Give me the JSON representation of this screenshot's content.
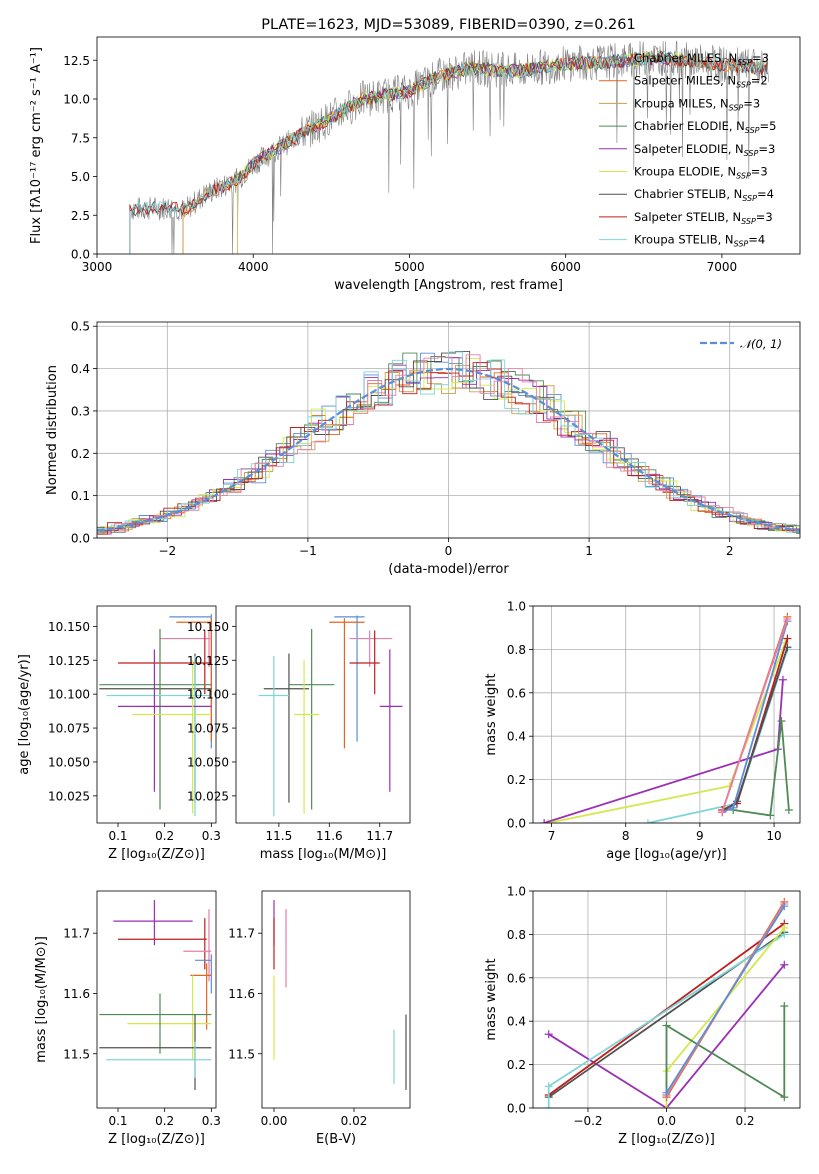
{
  "colors": {
    "Chabrier MILES": "#5b8ed6",
    "Salpeter MILES": "#e2651f",
    "Kroupa MILES": "#c9a04a",
    "Chabrier ELODIE": "#4f8a55",
    "Salpeter ELODIE": "#9b2fb5",
    "Kroupa ELODIE": "#d4e84d",
    "Chabrier STELIB": "#505050",
    "Salpeter STELIB": "#c01d1d",
    "Kroupa STELIB": "#7fd4d6",
    "extra_pink": "#e77fa8",
    "spectrum_data": "#808080"
  },
  "chart_data": [
    {
      "id": "spectrum",
      "type": "line",
      "title": "PLATE=1623, MJD=53089, FIBERID=0390, z=0.261",
      "xlabel": "wavelength [Angstrom, rest frame]",
      "ylabel": "Flux [fλ10⁻¹⁷ erg cm⁻² s⁻¹ A⁻¹]",
      "xlim": [
        3000,
        7500
      ],
      "ylim": [
        0,
        14
      ],
      "xticks": [
        "3000",
        "4000",
        "5000",
        "6000",
        "7000"
      ],
      "yticks": [
        "0.0",
        "2.5",
        "5.0",
        "7.5",
        "10.0",
        "12.5"
      ],
      "legend_position": "right",
      "legend": [
        {
          "label": "Chabrier MILES, N",
          "sub": "SSP",
          "suffix": "=3"
        },
        {
          "label": "Salpeter MILES, N",
          "sub": "SSP",
          "suffix": "=2"
        },
        {
          "label": "Kroupa MILES, N",
          "sub": "SSP",
          "suffix": "=3"
        },
        {
          "label": "Chabrier ELODIE, N",
          "sub": "SSP",
          "suffix": "=5"
        },
        {
          "label": "Salpeter ELODIE, N",
          "sub": "SSP",
          "suffix": "=3"
        },
        {
          "label": "Kroupa ELODIE, N",
          "sub": "SSP",
          "suffix": "=3"
        },
        {
          "label": "Chabrier STELIB, N",
          "sub": "SSP",
          "suffix": "=4"
        },
        {
          "label": "Salpeter STELIB, N",
          "sub": "SSP",
          "suffix": "=3"
        },
        {
          "label": "Kroupa STELIB, N",
          "sub": "SSP",
          "suffix": "=4"
        }
      ],
      "continuum": {
        "x": [
          3220,
          3500,
          3560,
          3700,
          3900,
          4000,
          4300,
          4500,
          4700,
          5000,
          5200,
          5400,
          5700,
          6000,
          6300,
          6600,
          7000,
          7300,
          7500
        ],
        "y": [
          2.9,
          3.0,
          2.8,
          3.9,
          4.8,
          5.8,
          7.7,
          8.8,
          10.0,
          10.5,
          11.5,
          12.0,
          11.8,
          12.3,
          12.4,
          12.7,
          12.2,
          12.0,
          12.0
        ]
      }
    },
    {
      "id": "residuals",
      "type": "histogram",
      "xlabel": "(data-model)/error",
      "ylabel": "Normed distribution",
      "xlim": [
        -2.5,
        2.5
      ],
      "ylim": [
        0,
        0.51
      ],
      "xticks": [
        "−2",
        "−1",
        "0",
        "1",
        "2"
      ],
      "yticks": [
        "0.0",
        "0.1",
        "0.2",
        "0.3",
        "0.4",
        "0.5"
      ],
      "legend": [
        "𝒩(0, 1)"
      ],
      "legend_position": "top-right",
      "normal_curve": {
        "mean": 0,
        "sigma": 1
      }
    },
    {
      "id": "age_vs_Z",
      "type": "scatter",
      "xlabel": "Z [log₁₀(Z/Z⊙)]",
      "ylabel": "age  [log₁₀(age/yr)]",
      "xlim": [
        0.055,
        0.31
      ],
      "ylim": [
        10.005,
        10.165
      ],
      "xticks": [
        "0.1",
        "0.2",
        "0.3"
      ],
      "yticks": [
        "10.025",
        "10.050",
        "10.075",
        "10.100",
        "10.125",
        "10.150"
      ],
      "points": [
        {
          "model": "Chabrier MILES",
          "x": 0.3,
          "xerr": [
            0.21,
            0.3
          ],
          "y": 10.157,
          "yerr": [
            10.06,
            10.159
          ]
        },
        {
          "model": "Salpeter MILES",
          "x": 0.3,
          "xerr": [
            0.225,
            0.3
          ],
          "y": 10.153,
          "yerr": [
            10.065,
            10.156
          ]
        },
        {
          "model": "extra_pink",
          "x": 0.295,
          "xerr": [
            0.19,
            0.3
          ],
          "y": 10.141,
          "yerr": [
            10.12,
            10.147
          ]
        },
        {
          "model": "Salpeter STELIB",
          "x": 0.286,
          "xerr": [
            0.1,
            0.3
          ],
          "y": 10.123,
          "yerr": [
            10.1,
            10.147
          ]
        },
        {
          "model": "Chabrier STELIB",
          "x": 0.265,
          "xerr": [
            0.06,
            0.3
          ],
          "y": 10.104,
          "yerr": [
            10.02,
            10.13
          ]
        },
        {
          "model": "Chabrier ELODIE",
          "x": 0.19,
          "xerr": [
            0.06,
            0.3
          ],
          "y": 10.107,
          "yerr": [
            10.015,
            10.148
          ]
        },
        {
          "model": "Kroupa STELIB",
          "x": 0.265,
          "xerr": [
            0.075,
            0.3
          ],
          "y": 10.099,
          "yerr": [
            10.01,
            10.128
          ]
        },
        {
          "model": "Salpeter ELODIE",
          "x": 0.178,
          "xerr": [
            0.1,
            0.3
          ],
          "y": 10.091,
          "yerr": [
            10.028,
            10.133
          ]
        },
        {
          "model": "Kroupa ELODIE",
          "x": 0.26,
          "xerr": [
            0.13,
            0.3
          ],
          "y": 10.085,
          "yerr": [
            10.012,
            10.125
          ]
        }
      ]
    },
    {
      "id": "age_vs_mass",
      "type": "scatter",
      "xlabel": "mass [log₁₀(M/M⊙)]",
      "xlim": [
        11.415,
        11.76
      ],
      "ylim": [
        10.005,
        10.165
      ],
      "xticks": [
        "11.5",
        "11.6",
        "11.7"
      ],
      "yticks": [
        "10.025",
        "10.050",
        "10.075",
        "10.100",
        "10.125",
        "10.150"
      ],
      "points": [
        {
          "model": "Chabrier MILES",
          "x": 11.655,
          "xerr": [
            11.61,
            11.67
          ],
          "y": 10.157,
          "yerr": [
            10.065,
            10.158
          ]
        },
        {
          "model": "Salpeter MILES",
          "x": 11.63,
          "xerr": [
            11.6,
            11.67
          ],
          "y": 10.153,
          "yerr": [
            10.06,
            10.156
          ]
        },
        {
          "model": "extra_pink",
          "x": 11.68,
          "xerr": [
            11.64,
            11.725
          ],
          "y": 10.141,
          "yerr": [
            10.12,
            10.147
          ]
        },
        {
          "model": "Salpeter STELIB",
          "x": 11.69,
          "xerr": [
            11.64,
            11.7
          ],
          "y": 10.123,
          "yerr": [
            10.1,
            10.147
          ]
        },
        {
          "model": "Chabrier STELIB",
          "x": 11.52,
          "xerr": [
            11.47,
            11.56
          ],
          "y": 10.104,
          "yerr": [
            10.02,
            10.13
          ]
        },
        {
          "model": "Chabrier ELODIE",
          "x": 11.565,
          "xerr": [
            11.52,
            11.61
          ],
          "y": 10.107,
          "yerr": [
            10.015,
            10.148
          ]
        },
        {
          "model": "Kroupa STELIB",
          "x": 11.49,
          "xerr": [
            11.46,
            11.52
          ],
          "y": 10.099,
          "yerr": [
            10.01,
            10.128
          ]
        },
        {
          "model": "Salpeter ELODIE",
          "x": 11.72,
          "xerr": [
            11.7,
            11.745
          ],
          "y": 10.091,
          "yerr": [
            10.028,
            10.133
          ]
        },
        {
          "model": "Kroupa ELODIE",
          "x": 11.55,
          "xerr": [
            11.53,
            11.58
          ],
          "y": 10.085,
          "yerr": [
            10.012,
            10.125
          ]
        }
      ]
    },
    {
      "id": "weight_vs_age",
      "type": "line",
      "xlabel": "age  [log₁₀(age/yr)]",
      "ylabel": "mass weight",
      "xlim": [
        6.75,
        10.35
      ],
      "ylim": [
        0,
        1.0
      ],
      "xticks": [
        "7",
        "8",
        "9",
        "10"
      ],
      "yticks": [
        "0.0",
        "0.2",
        "0.4",
        "0.6",
        "0.8",
        "1.0"
      ],
      "series": [
        {
          "model": "Kroupa ELODIE",
          "x": [
            6.95,
            9.4,
            10.15
          ],
          "y": [
            0.0,
            0.17,
            0.83
          ]
        },
        {
          "model": "Salpeter ELODIE",
          "x": [
            6.9,
            10.05,
            10.12
          ],
          "y": [
            0.0,
            0.34,
            0.66
          ]
        },
        {
          "model": "Chabrier ELODIE",
          "x": [
            9.45,
            9.95,
            10.1,
            10.2
          ],
          "y": [
            0.06,
            0.035,
            0.47,
            0.06
          ]
        },
        {
          "model": "Kroupa STELIB",
          "x": [
            8.3,
            9.5,
            10.18
          ],
          "y": [
            0.0,
            0.09,
            0.8
          ]
        },
        {
          "model": "Salpeter STELIB",
          "x": [
            9.3,
            9.5,
            10.18
          ],
          "y": [
            0.06,
            0.09,
            0.85
          ]
        },
        {
          "model": "Chabrier STELIB",
          "x": [
            9.3,
            9.5,
            10.18
          ],
          "y": [
            0.05,
            0.1,
            0.81
          ]
        },
        {
          "model": "Chabrier MILES",
          "x": [
            9.3,
            9.45,
            10.18
          ],
          "y": [
            0.05,
            0.07,
            0.93
          ]
        },
        {
          "model": "Salpeter MILES",
          "x": [
            9.3,
            10.18
          ],
          "y": [
            0.05,
            0.95
          ]
        },
        {
          "model": "extra_pink",
          "x": [
            9.3,
            10.18
          ],
          "y": [
            0.05,
            0.94
          ]
        }
      ]
    },
    {
      "id": "mass_vs_Z",
      "type": "scatter",
      "xlabel": "Z [log₁₀(Z/Z⊙)]",
      "ylabel": "mass [log₁₀(M/M⊙)]",
      "xlim": [
        0.055,
        0.31
      ],
      "ylim": [
        11.41,
        11.77
      ],
      "xticks": [
        "0.1",
        "0.2",
        "0.3"
      ],
      "yticks": [
        "11.5",
        "11.6",
        "11.7"
      ],
      "points": [
        {
          "model": "Salpeter ELODIE",
          "x": 0.178,
          "xerr": [
            0.09,
            0.26
          ],
          "y": 11.72,
          "yerr": [
            11.68,
            11.755
          ]
        },
        {
          "model": "Salpeter STELIB",
          "x": 0.286,
          "xerr": [
            0.1,
            0.29
          ],
          "y": 11.69,
          "yerr": [
            11.64,
            11.725
          ]
        },
        {
          "model": "extra_pink",
          "x": 0.295,
          "xerr": [
            0.24,
            0.3
          ],
          "y": 11.67,
          "yerr": [
            11.62,
            11.74
          ]
        },
        {
          "model": "Chabrier MILES",
          "x": 0.3,
          "xerr": [
            0.265,
            0.3
          ],
          "y": 11.655,
          "yerr": [
            11.6,
            11.665
          ]
        },
        {
          "model": "Salpeter MILES",
          "x": 0.29,
          "xerr": [
            0.255,
            0.3
          ],
          "y": 11.63,
          "yerr": [
            11.54,
            11.65
          ]
        },
        {
          "model": "Kroupa ELODIE",
          "x": 0.26,
          "xerr": [
            0.12,
            0.3
          ],
          "y": 11.55,
          "yerr": [
            11.49,
            11.63
          ]
        },
        {
          "model": "Chabrier ELODIE",
          "x": 0.19,
          "xerr": [
            0.06,
            0.3
          ],
          "y": 11.565,
          "yerr": [
            11.5,
            11.6
          ]
        },
        {
          "model": "Chabrier STELIB",
          "x": 0.265,
          "xerr": [
            0.06,
            0.3
          ],
          "y": 11.51,
          "yerr": [
            11.44,
            11.565
          ]
        },
        {
          "model": "Kroupa STELIB",
          "x": 0.265,
          "xerr": [
            0.075,
            0.3
          ],
          "y": 11.49,
          "yerr": [
            11.46,
            11.52
          ]
        }
      ]
    },
    {
      "id": "mass_vs_ebv",
      "type": "scatter",
      "xlabel": "E(B-V)",
      "xlim": [
        -0.003,
        0.034
      ],
      "ylim": [
        11.41,
        11.77
      ],
      "xticks": [
        "0.00",
        "0.02"
      ],
      "yticks": [
        "11.5",
        "11.6",
        "11.7"
      ],
      "points": [
        {
          "model": "Salpeter ELODIE",
          "x": 0.0,
          "y": 11.72,
          "yerr": [
            11.68,
            11.755
          ]
        },
        {
          "model": "Salpeter STELIB",
          "x": 0.0,
          "y": 11.69,
          "yerr": [
            11.64,
            11.725
          ]
        },
        {
          "model": "extra_pink",
          "x": 0.003,
          "y": 11.67,
          "yerr": [
            11.61,
            11.74
          ]
        },
        {
          "model": "Kroupa ELODIE",
          "x": 0.0,
          "y": 11.55,
          "yerr": [
            11.49,
            11.63
          ]
        },
        {
          "model": "Kroupa STELIB",
          "x": 0.03,
          "y": 11.49,
          "yerr": [
            11.45,
            11.54
          ]
        },
        {
          "model": "Chabrier STELIB",
          "x": 0.033,
          "y": 11.51,
          "yerr": [
            11.44,
            11.565
          ]
        }
      ]
    },
    {
      "id": "weight_vs_Z",
      "type": "line",
      "xlabel": "Z [log₁₀(Z/Z⊙)]",
      "ylabel": "mass weight",
      "xlim": [
        -0.34,
        0.34
      ],
      "ylim": [
        0,
        1.0
      ],
      "xticks": [
        "−0.2",
        "0.0",
        "0.2"
      ],
      "yticks": [
        "0.0",
        "0.2",
        "0.4",
        "0.6",
        "0.8",
        "1.0"
      ],
      "series": [
        {
          "model": "Salpeter ELODIE",
          "x": [
            -0.3,
            0.0,
            0.3
          ],
          "y": [
            0.34,
            0.0,
            0.66
          ]
        },
        {
          "model": "Salpeter STELIB",
          "x": [
            -0.3,
            0.3
          ],
          "y": [
            0.06,
            0.85
          ]
        },
        {
          "model": "Chabrier STELIB",
          "x": [
            -0.3,
            0.3
          ],
          "y": [
            0.05,
            0.81
          ]
        },
        {
          "model": "Kroupa STELIB",
          "x": [
            -0.3,
            -0.3,
            0.3
          ],
          "y": [
            0.0,
            0.1,
            0.8
          ]
        },
        {
          "model": "Kroupa ELODIE",
          "x": [
            0.0,
            0.0,
            0.3
          ],
          "y": [
            0.0,
            0.17,
            0.83
          ]
        },
        {
          "model": "Chabrier ELODIE",
          "x": [
            0.0,
            0.0,
            0.3,
            0.3
          ],
          "y": [
            0.06,
            0.38,
            0.05,
            0.47
          ]
        },
        {
          "model": "Salpeter MILES",
          "x": [
            0.0,
            0.3
          ],
          "y": [
            0.05,
            0.95
          ]
        },
        {
          "model": "extra_pink",
          "x": [
            0.0,
            0.3
          ],
          "y": [
            0.06,
            0.94
          ]
        },
        {
          "model": "Chabrier MILES",
          "x": [
            0.0,
            0.3
          ],
          "y": [
            0.07,
            0.93
          ]
        }
      ]
    }
  ]
}
